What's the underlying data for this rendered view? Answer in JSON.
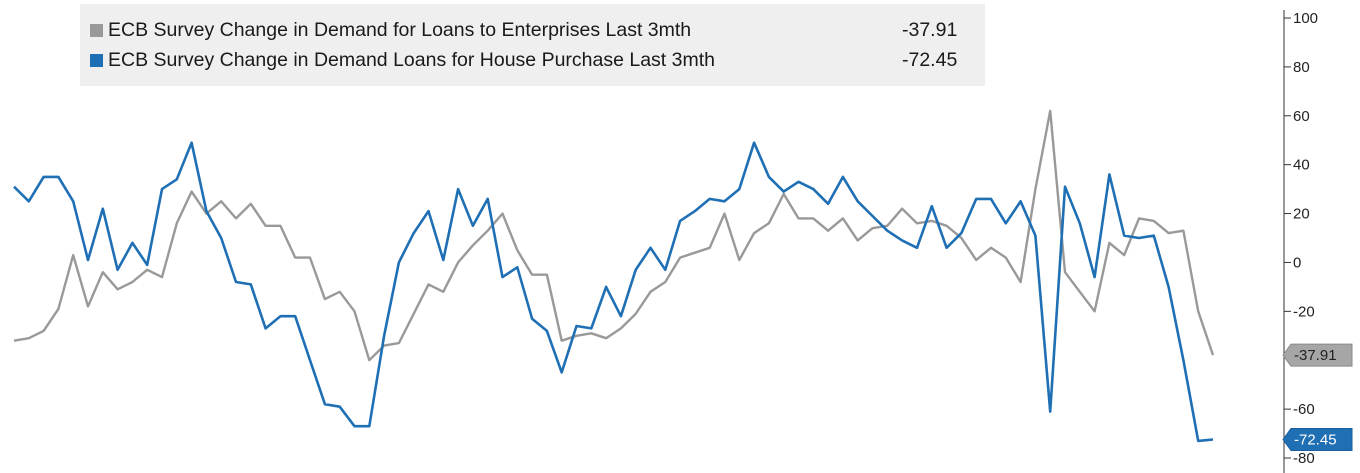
{
  "chart_data": {
    "type": "line",
    "ylim": [
      -80,
      100
    ],
    "y_ticks": [
      100,
      80,
      60,
      40,
      20,
      0,
      -20,
      -60,
      -80
    ],
    "grid": false,
    "legend_position": "top-left",
    "series": [
      {
        "name": "ECB Survey Change in Demand for Loans to Enterprises Last 3mth",
        "last_value_label": "-37.91",
        "color": "#999999",
        "values": [
          -32,
          -31,
          -28,
          -19,
          3,
          -18,
          -4,
          -11,
          -8,
          -3,
          -6,
          16,
          29,
          20,
          25,
          18,
          24,
          15,
          15,
          2,
          2,
          -15,
          -12,
          -20,
          -40,
          -34,
          -33,
          -21,
          -9,
          -12,
          0,
          7,
          13,
          20,
          5,
          -5,
          -5,
          -32,
          -30,
          -29,
          -31,
          -27,
          -21,
          -12,
          -8,
          2,
          4,
          6,
          20,
          1,
          12,
          16,
          28,
          18,
          18,
          13,
          18,
          9,
          14,
          15,
          22,
          16,
          17,
          15,
          10,
          1,
          6,
          2,
          -8,
          30,
          62,
          -4,
          -12,
          -20,
          8,
          3,
          18,
          17,
          12,
          13,
          -20,
          -37.91
        ]
      },
      {
        "name": "ECB Survey Change in Demand Loans for House Purchase Last 3mth",
        "last_value_label": "-72.45",
        "color": "#1f6fb5",
        "values": [
          31,
          25,
          35,
          35,
          25,
          1,
          22,
          -3,
          8,
          -1,
          30,
          34,
          49,
          21,
          10,
          -8,
          -9,
          -27,
          -22,
          -22,
          -40,
          -58,
          -59,
          -67,
          -67,
          -30,
          0,
          12,
          21,
          1,
          30,
          15,
          26,
          -6,
          -2,
          -23,
          -28,
          -45,
          -26,
          -27,
          -10,
          -22,
          -3,
          6,
          -3,
          17,
          21,
          26,
          25,
          30,
          49,
          35,
          29,
          33,
          30,
          24,
          35,
          25,
          19,
          13,
          9,
          6,
          23,
          6,
          12,
          26,
          26,
          16,
          25,
          11,
          -61,
          31,
          16,
          -6,
          36,
          11,
          10,
          11,
          -10,
          -40,
          -73,
          -72.45
        ]
      }
    ]
  }
}
